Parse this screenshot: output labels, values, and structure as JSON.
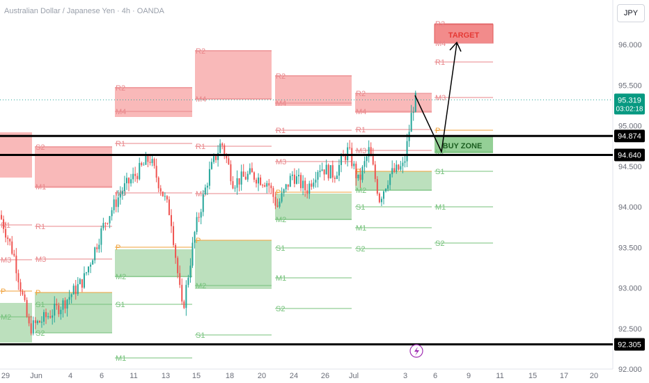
{
  "header": {
    "title": "Australian Dollar / Japanese Yen · 4h · OANDA",
    "currency": "JPY"
  },
  "chart_data": {
    "type": "candlestick",
    "symbol": "AUDJPY",
    "timeframe": "4h",
    "ylim": [
      92.0,
      96.55
    ],
    "y_ticks": [
      "96.000",
      "95.500",
      "95.000",
      "94.500",
      "94.000",
      "93.500",
      "93.000",
      "92.500",
      "92.000"
    ],
    "x_ticks": [
      "29",
      "Jun",
      "4",
      "6",
      "11",
      "13",
      "15",
      "18",
      "20",
      "24",
      "26",
      "Jul",
      "3",
      "6",
      "9",
      "11",
      "15",
      "17",
      "20"
    ],
    "price_badges": [
      {
        "value": "95.319",
        "sub": "03:02:18",
        "color": "#089981",
        "y": 95.319
      },
      {
        "value": "94.874",
        "color": "#000000",
        "y": 94.874
      },
      {
        "value": "94.640",
        "color": "#000000",
        "y": 94.64
      },
      {
        "value": "92.305",
        "color": "#000000",
        "y": 92.305
      }
    ],
    "horizontal_levels": [
      94.874,
      94.64,
      92.305
    ],
    "last_price": 95.319,
    "annotations": {
      "target_label": "TARGET",
      "buy_zone_label": "BUY ZONE",
      "pivot_labels": [
        "R2",
        "R1",
        "P",
        "S1",
        "S2",
        "M1",
        "M2",
        "M3",
        "M4"
      ]
    },
    "colors": {
      "up": "#26a69a",
      "down": "#ef5350",
      "supply_zone": "#f7a1a1",
      "demand_zone": "#a5d6a7",
      "buy_zone": "#81c784",
      "target_zone": "#f28b8b",
      "pivot_red": "#e8868a",
      "pivot_green": "#74c17a",
      "pivot_orange": "#f0a13a"
    }
  }
}
